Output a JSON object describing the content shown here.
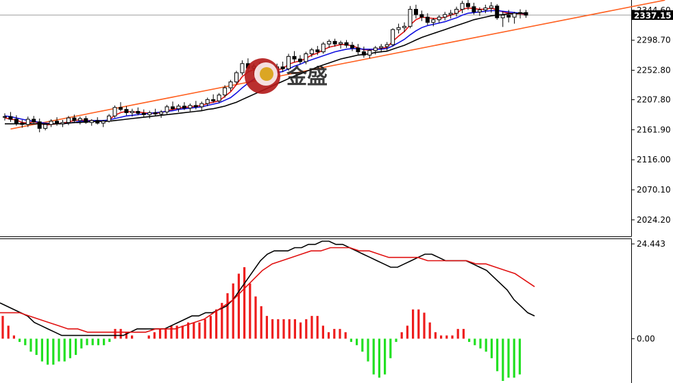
{
  "chart_data": [
    {
      "type": "candlestick",
      "title": "",
      "watermark": "金盛",
      "y_ticks": [
        "2344.60",
        "2298.70",
        "2252.80",
        "2207.80",
        "2161.90",
        "2116.00",
        "2070.10",
        "2024.20"
      ],
      "ylim": [
        2000,
        2356
      ],
      "current_price": "2337.15",
      "candles": [
        [
          2181,
          2187,
          2176,
          2182
        ],
        [
          2182,
          2189,
          2174,
          2178
        ],
        [
          2178,
          2184,
          2168,
          2172
        ],
        [
          2172,
          2177,
          2165,
          2170
        ],
        [
          2170,
          2182,
          2166,
          2178
        ],
        [
          2178,
          2183,
          2172,
          2174
        ],
        [
          2174,
          2179,
          2158,
          2164
        ],
        [
          2164,
          2172,
          2161,
          2170
        ],
        [
          2170,
          2178,
          2166,
          2175
        ],
        [
          2175,
          2181,
          2168,
          2171
        ],
        [
          2171,
          2177,
          2166,
          2173
        ],
        [
          2173,
          2183,
          2169,
          2180
        ],
        [
          2180,
          2185,
          2172,
          2176
        ],
        [
          2176,
          2182,
          2170,
          2179
        ],
        [
          2179,
          2183,
          2171,
          2173
        ],
        [
          2173,
          2178,
          2168,
          2176
        ],
        [
          2176,
          2181,
          2170,
          2172
        ],
        [
          2172,
          2177,
          2166,
          2175
        ],
        [
          2175,
          2186,
          2173,
          2183
        ],
        [
          2183,
          2199,
          2180,
          2196
        ],
        [
          2196,
          2204,
          2190,
          2193
        ],
        [
          2193,
          2198,
          2184,
          2188
        ],
        [
          2188,
          2194,
          2182,
          2190
        ],
        [
          2190,
          2196,
          2184,
          2187
        ],
        [
          2187,
          2193,
          2181,
          2185
        ],
        [
          2185,
          2191,
          2179,
          2188
        ],
        [
          2188,
          2194,
          2183,
          2186
        ],
        [
          2186,
          2192,
          2180,
          2189
        ],
        [
          2189,
          2200,
          2186,
          2197
        ],
        [
          2197,
          2205,
          2192,
          2194
        ],
        [
          2194,
          2201,
          2189,
          2198
        ],
        [
          2198,
          2204,
          2192,
          2195
        ],
        [
          2195,
          2202,
          2190,
          2199
        ],
        [
          2199,
          2206,
          2193,
          2197
        ],
        [
          2197,
          2205,
          2191,
          2202
        ],
        [
          2202,
          2211,
          2198,
          2208
        ],
        [
          2208,
          2216,
          2203,
          2206
        ],
        [
          2206,
          2218,
          2203,
          2215
        ],
        [
          2215,
          2230,
          2211,
          2226
        ],
        [
          2226,
          2238,
          2221,
          2235
        ],
        [
          2235,
          2252,
          2231,
          2249
        ],
        [
          2249,
          2268,
          2245,
          2263
        ],
        [
          2263,
          2271,
          2250,
          2256
        ],
        [
          2256,
          2263,
          2245,
          2259
        ],
        [
          2259,
          2265,
          2240,
          2244
        ],
        [
          2244,
          2252,
          2237,
          2247
        ],
        [
          2247,
          2256,
          2242,
          2251
        ],
        [
          2251,
          2263,
          2246,
          2258
        ],
        [
          2258,
          2266,
          2250,
          2255
        ],
        [
          2255,
          2278,
          2252,
          2274
        ],
        [
          2274,
          2282,
          2265,
          2270
        ],
        [
          2270,
          2276,
          2262,
          2266
        ],
        [
          2266,
          2281,
          2262,
          2278
        ],
        [
          2278,
          2287,
          2273,
          2284
        ],
        [
          2284,
          2290,
          2276,
          2281
        ],
        [
          2281,
          2296,
          2278,
          2293
        ],
        [
          2293,
          2300,
          2287,
          2297
        ],
        [
          2297,
          2301,
          2289,
          2293
        ],
        [
          2293,
          2298,
          2286,
          2295
        ],
        [
          2295,
          2299,
          2287,
          2291
        ],
        [
          2291,
          2296,
          2282,
          2287
        ],
        [
          2287,
          2293,
          2277,
          2281
        ],
        [
          2281,
          2289,
          2272,
          2276
        ],
        [
          2276,
          2285,
          2271,
          2283
        ],
        [
          2283,
          2290,
          2277,
          2287
        ],
        [
          2287,
          2293,
          2280,
          2289
        ],
        [
          2289,
          2296,
          2283,
          2292
        ],
        [
          2292,
          2317,
          2289,
          2315
        ],
        [
          2315,
          2324,
          2309,
          2318
        ],
        [
          2318,
          2326,
          2311,
          2320
        ],
        [
          2320,
          2351,
          2317,
          2346
        ],
        [
          2346,
          2353,
          2332,
          2338
        ],
        [
          2338,
          2344,
          2328,
          2334
        ],
        [
          2334,
          2340,
          2322,
          2326
        ],
        [
          2326,
          2333,
          2320,
          2330
        ],
        [
          2330,
          2337,
          2325,
          2334
        ],
        [
          2334,
          2342,
          2329,
          2338
        ],
        [
          2338,
          2345,
          2332,
          2340
        ],
        [
          2340,
          2350,
          2335,
          2346
        ],
        [
          2346,
          2359,
          2340,
          2355
        ],
        [
          2355,
          2362,
          2345,
          2350
        ],
        [
          2350,
          2356,
          2338,
          2342
        ],
        [
          2342,
          2349,
          2336,
          2345
        ],
        [
          2345,
          2353,
          2340,
          2348
        ],
        [
          2348,
          2357,
          2341,
          2351
        ],
        [
          2351,
          2354,
          2330,
          2333
        ],
        [
          2333,
          2343,
          2319,
          2337
        ],
        [
          2337,
          2345,
          2326,
          2334
        ],
        [
          2334,
          2342,
          2324,
          2340
        ],
        [
          2340,
          2346,
          2332,
          2341
        ],
        [
          2341,
          2345,
          2333,
          2337
        ]
      ],
      "series": [
        {
          "name": "",
          "color": "#e01010",
          "values": [
            2180,
            2178,
            2177,
            2173,
            2172,
            2174,
            2172,
            2169,
            2170,
            2171,
            2172,
            2174,
            2176,
            2177,
            2176,
            2176,
            2175,
            2175,
            2177,
            2184,
            2188,
            2190,
            2189,
            2189,
            2188,
            2187,
            2187,
            2188,
            2191,
            2193,
            2195,
            2196,
            2197,
            2198,
            2199,
            2202,
            2204,
            2206,
            2213,
            2220,
            2231,
            2243,
            2250,
            2254,
            2253,
            2251,
            2252,
            2254,
            2255,
            2262,
            2265,
            2267,
            2271,
            2276,
            2279,
            2284,
            2288,
            2290,
            2292,
            2292,
            2290,
            2287,
            2284,
            2284,
            2285,
            2286,
            2288,
            2297,
            2305,
            2312,
            2322,
            2330,
            2334,
            2333,
            2332,
            2332,
            2334,
            2337,
            2340,
            2346,
            2348,
            2347,
            2346,
            2346,
            2348,
            2345,
            2342,
            2340,
            2339,
            2339,
            2338
          ]
        },
        {
          "name": "",
          "color": "#1010e0",
          "values": [
            2183,
            2182,
            2180,
            2178,
            2176,
            2175,
            2173,
            2172,
            2171,
            2171,
            2171,
            2172,
            2173,
            2175,
            2175,
            2176,
            2176,
            2176,
            2177,
            2179,
            2181,
            2183,
            2184,
            2185,
            2186,
            2187,
            2188,
            2189,
            2190,
            2191,
            2193,
            2194,
            2195,
            2196,
            2197,
            2199,
            2201,
            2203,
            2207,
            2211,
            2218,
            2226,
            2233,
            2239,
            2243,
            2245,
            2247,
            2249,
            2251,
            2255,
            2259,
            2262,
            2266,
            2269,
            2272,
            2275,
            2278,
            2281,
            2283,
            2285,
            2286,
            2286,
            2285,
            2285,
            2285,
            2285,
            2286,
            2290,
            2295,
            2300,
            2307,
            2313,
            2318,
            2321,
            2323,
            2325,
            2327,
            2330,
            2333,
            2337,
            2340,
            2341,
            2342,
            2343,
            2344,
            2344,
            2343,
            2342,
            2341,
            2340,
            2339
          ]
        },
        {
          "name": "",
          "color": "#000000",
          "values": [
            2171,
            2171,
            2171,
            2171,
            2171,
            2171,
            2171,
            2171,
            2171,
            2171,
            2171,
            2172,
            2173,
            2173,
            2174,
            2174,
            2175,
            2175,
            2175,
            2176,
            2177,
            2178,
            2179,
            2180,
            2181,
            2182,
            2183,
            2184,
            2185,
            2186,
            2187,
            2188,
            2189,
            2190,
            2191,
            2193,
            2194,
            2196,
            2198,
            2201,
            2204,
            2208,
            2212,
            2216,
            2220,
            2224,
            2228,
            2232,
            2236,
            2240,
            2244,
            2247,
            2251,
            2254,
            2258,
            2261,
            2264,
            2267,
            2270,
            2272,
            2274,
            2276,
            2277,
            2278,
            2280,
            2281,
            2282,
            2285,
            2288,
            2291,
            2295,
            2299,
            2303,
            2306,
            2309,
            2312,
            2315,
            2318,
            2321,
            2324,
            2327,
            2330,
            2332,
            2334,
            2336,
            2337,
            2338,
            2339,
            2339,
            2340,
            2340
          ]
        }
      ],
      "trendline": {
        "color": "#ff6020",
        "from": [
          1,
          2163
        ],
        "to": [
          114,
          2360
        ]
      }
    },
    {
      "type": "bar",
      "title": "",
      "y_ticks": [
        "24.443",
        "0.00"
      ],
      "ylim": [
        -13,
        30
      ],
      "zero_value": 0,
      "bar_colors": {
        "positive": "#ee1c1c",
        "negative": "#22e022"
      },
      "histogram": [
        7,
        4,
        1,
        -1,
        -2,
        -4,
        -5,
        -7,
        -8,
        -8,
        -7,
        -7,
        -6,
        -5,
        -3,
        -2,
        -2,
        -2,
        -2,
        -1,
        3,
        3,
        2,
        1,
        0,
        0,
        1,
        2,
        3,
        3,
        4,
        4,
        4,
        5,
        5,
        5,
        6,
        7,
        9,
        11,
        14,
        17,
        20,
        22,
        17,
        13,
        10,
        7,
        6,
        6,
        6,
        6,
        6,
        5,
        6,
        7,
        7,
        4,
        2,
        3,
        3,
        2,
        -1,
        -2,
        -4,
        -7,
        -11,
        -12,
        -11,
        -6,
        -1,
        2,
        4,
        9,
        9,
        8,
        5,
        2,
        1,
        1,
        1,
        3,
        3,
        -1,
        -2,
        -3,
        -4,
        -6,
        -10,
        -13,
        -12,
        -12,
        -11
      ],
      "series": [
        {
          "name": "",
          "color": "#000000",
          "values": [
            11,
            10,
            9,
            8,
            7,
            5,
            4,
            3,
            2,
            1,
            1,
            1,
            1,
            1,
            1,
            1,
            1,
            1,
            1,
            2,
            3,
            3,
            3,
            3,
            3,
            4,
            5,
            6,
            7,
            7,
            8,
            8,
            9,
            10,
            12,
            15,
            18,
            21,
            24,
            26,
            27,
            27,
            27,
            28,
            28,
            29,
            29,
            30,
            30,
            29,
            29,
            28,
            27,
            26,
            25,
            24,
            23,
            22,
            22,
            23,
            24,
            25,
            26,
            26,
            25,
            24,
            24,
            24,
            24,
            23,
            22,
            21,
            19,
            17,
            15,
            12,
            10,
            8,
            7
          ]
        },
        {
          "name": "",
          "color": "#e01010",
          "values": [
            8,
            8,
            8,
            7,
            6,
            5,
            4,
            3,
            3,
            2,
            2,
            2,
            2,
            2,
            2,
            2,
            3,
            3,
            3,
            4,
            5,
            6,
            8,
            10,
            12,
            15,
            18,
            21,
            23,
            24,
            25,
            26,
            27,
            27,
            28,
            28,
            28,
            27,
            27,
            26,
            25,
            25,
            25,
            25,
            24,
            24,
            24,
            24,
            24,
            23,
            23,
            22,
            21,
            20,
            18,
            16
          ]
        }
      ]
    }
  ]
}
